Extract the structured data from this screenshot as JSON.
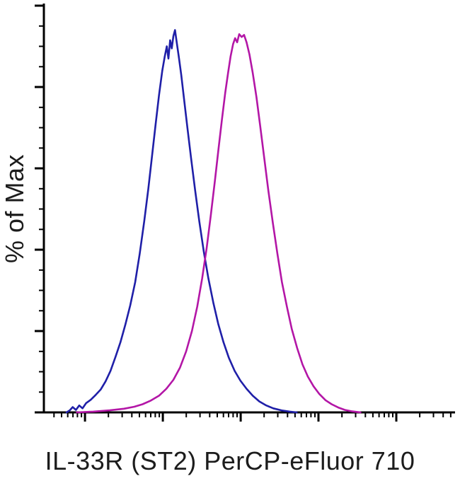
{
  "chart_data": {
    "type": "line",
    "subtype": "flow-cytometry-overlay-histogram",
    "title": "",
    "xlabel": "IL-33R (ST2) PerCP-eFluor 710",
    "ylabel": "% of Max",
    "x_scale": "log",
    "ylim": [
      0,
      100
    ],
    "grid": false,
    "legend": "none",
    "background_color": "#ffffff",
    "axis_color": "#000000",
    "y_axis_ticks": {
      "major_every_pct": 20,
      "minor_every_pct": 5
    },
    "x_axis_ticks": {
      "decade_positions_pct": [
        10,
        28.93,
        47.86,
        66.79,
        85.72
      ],
      "decade_spacing_pct": 18.93,
      "minor_multipliers": [
        2,
        3,
        4,
        5,
        6,
        7,
        8,
        9
      ]
    },
    "series": [
      {
        "id": "blue",
        "name": "blue histogram (left peak)",
        "color": "#1f1fa8",
        "points": [
          [
            5.5,
            0
          ],
          [
            6.3,
            0.5
          ],
          [
            7.0,
            1.3
          ],
          [
            7.8,
            0.6
          ],
          [
            8.6,
            1.7
          ],
          [
            9.4,
            1.0
          ],
          [
            10.3,
            2.3
          ],
          [
            11.4,
            3.1
          ],
          [
            12.6,
            4.3
          ],
          [
            13.8,
            5.6
          ],
          [
            15.0,
            7.6
          ],
          [
            16.2,
            10.2
          ],
          [
            17.4,
            13.6
          ],
          [
            18.6,
            17.2
          ],
          [
            19.8,
            21.5
          ],
          [
            21.0,
            26.3
          ],
          [
            22.2,
            32.0
          ],
          [
            23.3,
            39.0
          ],
          [
            24.4,
            47.0
          ],
          [
            25.4,
            55.0
          ],
          [
            26.3,
            63.0
          ],
          [
            27.2,
            71.0
          ],
          [
            28.0,
            78.0
          ],
          [
            28.8,
            84.0
          ],
          [
            29.4,
            87.5
          ],
          [
            29.9,
            90.0
          ],
          [
            30.3,
            87.0
          ],
          [
            30.7,
            91.5
          ],
          [
            31.1,
            89.5
          ],
          [
            31.5,
            92.5
          ],
          [
            31.9,
            94.0
          ],
          [
            32.3,
            91.0
          ],
          [
            32.8,
            87.5
          ],
          [
            33.4,
            83.0
          ],
          [
            34.1,
            77.0
          ],
          [
            34.9,
            70.0
          ],
          [
            35.8,
            62.5
          ],
          [
            36.8,
            54.5
          ],
          [
            37.8,
            47.0
          ],
          [
            38.9,
            39.5
          ],
          [
            40.0,
            33.0
          ],
          [
            41.2,
            27.0
          ],
          [
            42.4,
            21.8
          ],
          [
            43.7,
            17.2
          ],
          [
            45.0,
            13.4
          ],
          [
            46.4,
            10.2
          ],
          [
            47.8,
            7.8
          ],
          [
            49.3,
            5.8
          ],
          [
            50.8,
            4.1
          ],
          [
            52.4,
            2.7
          ],
          [
            54.1,
            1.7
          ],
          [
            55.8,
            1.0
          ],
          [
            57.8,
            0.5
          ],
          [
            59.8,
            0.2
          ],
          [
            61.5,
            0
          ]
        ]
      },
      {
        "id": "magenta",
        "name": "magenta histogram (right peak)",
        "color": "#b316a6",
        "points": [
          [
            8.0,
            0
          ],
          [
            12.0,
            0.2
          ],
          [
            16.0,
            0.5
          ],
          [
            19.5,
            0.9
          ],
          [
            22.0,
            1.4
          ],
          [
            24.0,
            2.0
          ],
          [
            26.0,
            2.9
          ],
          [
            28.0,
            4.1
          ],
          [
            29.8,
            5.8
          ],
          [
            31.5,
            8.0
          ],
          [
            33.1,
            11.0
          ],
          [
            34.6,
            15.0
          ],
          [
            36.0,
            20.0
          ],
          [
            37.3,
            26.0
          ],
          [
            38.5,
            33.0
          ],
          [
            39.6,
            40.5
          ],
          [
            40.6,
            48.5
          ],
          [
            41.6,
            57.0
          ],
          [
            42.5,
            65.0
          ],
          [
            43.3,
            72.0
          ],
          [
            44.1,
            78.5
          ],
          [
            44.8,
            83.5
          ],
          [
            45.4,
            87.5
          ],
          [
            46.0,
            90.5
          ],
          [
            46.5,
            92.0
          ],
          [
            47.0,
            91.0
          ],
          [
            47.5,
            93.0
          ],
          [
            48.1,
            92.3
          ],
          [
            48.7,
            92.8
          ],
          [
            49.3,
            91.0
          ],
          [
            50.0,
            88.0
          ],
          [
            50.8,
            83.5
          ],
          [
            51.7,
            77.5
          ],
          [
            52.6,
            70.5
          ],
          [
            53.6,
            62.5
          ],
          [
            54.6,
            54.5
          ],
          [
            55.7,
            46.5
          ],
          [
            56.8,
            39.0
          ],
          [
            57.9,
            32.0
          ],
          [
            59.1,
            26.0
          ],
          [
            60.3,
            20.5
          ],
          [
            61.6,
            15.8
          ],
          [
            62.9,
            11.8
          ],
          [
            64.2,
            8.8
          ],
          [
            65.6,
            6.4
          ],
          [
            67.0,
            4.5
          ],
          [
            68.5,
            3.0
          ],
          [
            70.0,
            2.0
          ],
          [
            71.6,
            1.2
          ],
          [
            73.2,
            0.6
          ],
          [
            75.0,
            0.25
          ],
          [
            77.0,
            0
          ]
        ]
      }
    ]
  }
}
